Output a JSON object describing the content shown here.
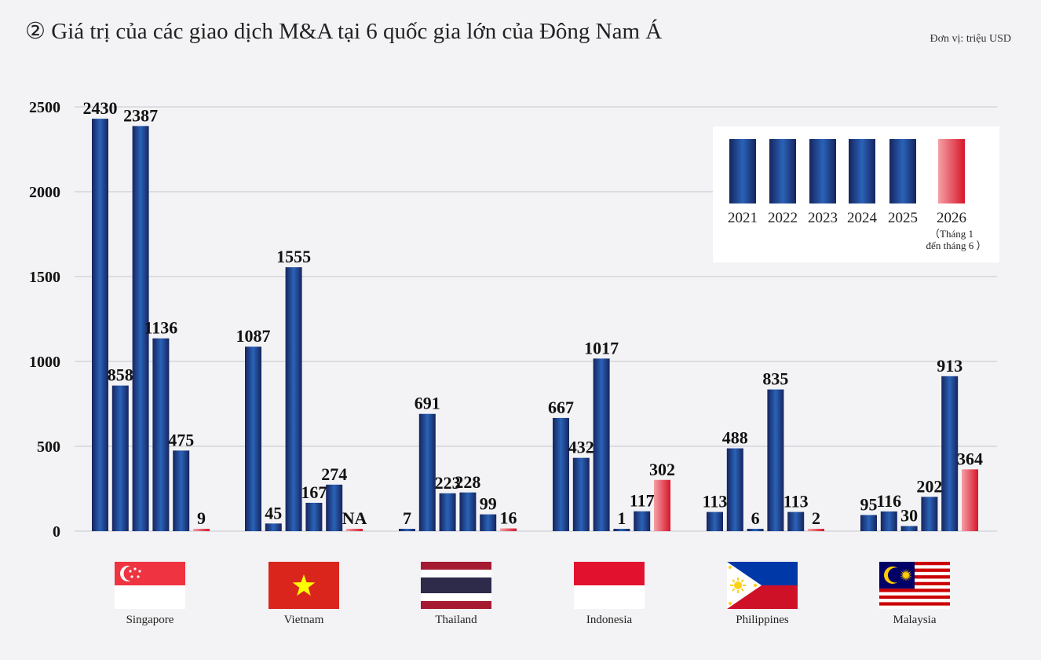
{
  "title": "② Giá trị của các giao dịch M&A tại 6 quốc gia lớn của Đông Nam Á",
  "unit": "Đơn vị: triệu USD",
  "colors": {
    "blue_dark": "#16245e",
    "blue_light": "#2a63b8",
    "red_dark": "#d8162a",
    "red_light": "#f4a0a6",
    "grid": "#cfd0d8"
  },
  "chart_data": {
    "type": "bar",
    "categories": [
      "Singapore",
      "Vietnam",
      "Thailand",
      "Indonesia",
      "Philippines",
      "Malaysia"
    ],
    "series_years": [
      "2021",
      "2022",
      "2023",
      "2024",
      "2025",
      "2026"
    ],
    "legend_note": [
      "（Tháng 1",
      "đến tháng 6 ）"
    ],
    "values": [
      [
        2430,
        858,
        2387,
        1136,
        475,
        9
      ],
      [
        1087,
        45,
        1555,
        167,
        274,
        null
      ],
      [
        7,
        691,
        223,
        228,
        99,
        16
      ],
      [
        667,
        432,
        1017,
        1,
        117,
        302
      ],
      [
        113,
        488,
        6,
        835,
        113,
        2
      ],
      [
        95,
        116,
        30,
        202,
        913,
        364
      ]
    ],
    "labels": [
      [
        "2430",
        "858",
        "2387",
        "1136",
        "475",
        "9"
      ],
      [
        "1087",
        "45",
        "1555",
        "167",
        "274",
        "NA"
      ],
      [
        "7",
        "691",
        "223",
        "228",
        "99",
        "16"
      ],
      [
        "667",
        "432",
        "1017",
        "1",
        "117",
        "302"
      ],
      [
        "113",
        "488",
        "6",
        "835",
        "113",
        "2"
      ],
      [
        "95",
        "116",
        "30",
        "202",
        "913",
        "364"
      ]
    ],
    "yticks": [
      "0",
      "500",
      "1000",
      "1500",
      "2000",
      "2500"
    ],
    "ylim": [
      0,
      2500
    ],
    "grid": true,
    "legend_position": "top-right",
    "flags": [
      "singapore-flag",
      "vietnam-flag",
      "thailand-flag",
      "indonesia-flag",
      "philippines-flag",
      "malaysia-flag"
    ]
  }
}
